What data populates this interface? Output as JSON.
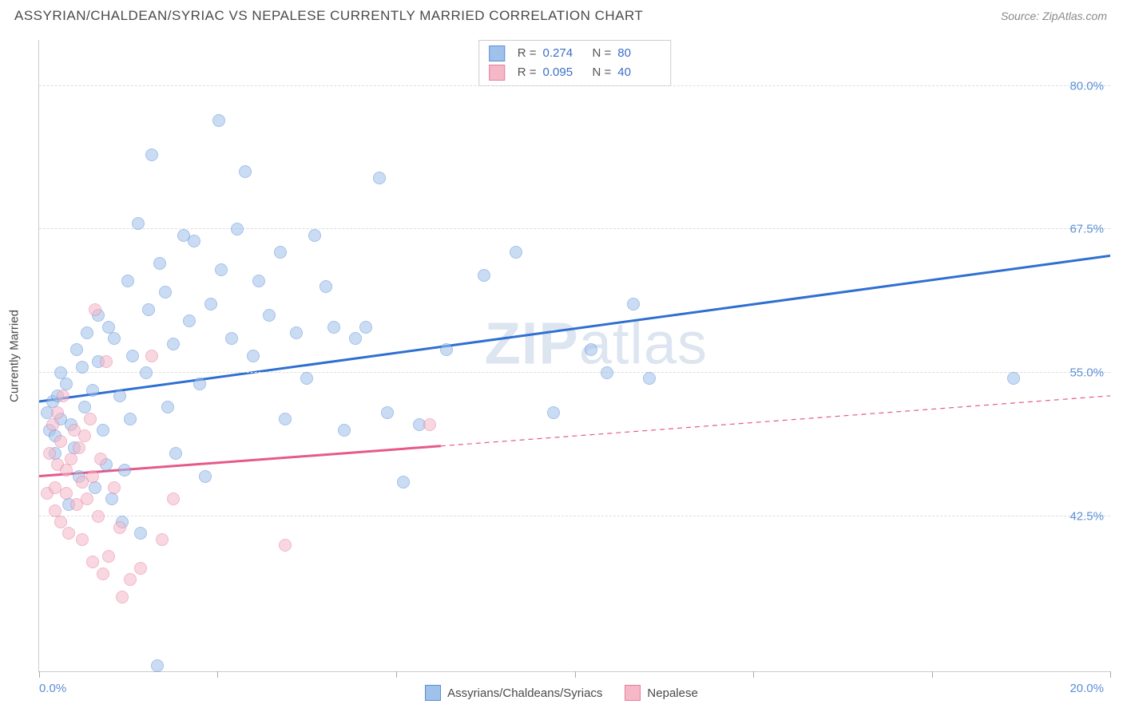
{
  "title": "ASSYRIAN/CHALDEAN/SYRIAC VS NEPALESE CURRENTLY MARRIED CORRELATION CHART",
  "source": "Source: ZipAtlas.com",
  "ylabel": "Currently Married",
  "watermark_parts": [
    "ZIP",
    "atlas"
  ],
  "chart": {
    "type": "scatter",
    "background_color": "#ffffff",
    "grid_color": "#dddddd",
    "axis_color": "#cccccc",
    "text_color": "#4a4a4a",
    "value_color": "#3b6fc9",
    "tick_label_color": "#5b8fd6",
    "xlim": [
      0.0,
      20.0
    ],
    "ylim": [
      29.0,
      84.0
    ],
    "x_ticks": [
      0.0,
      3.33,
      6.67,
      10.0,
      13.33,
      16.67,
      20.0
    ],
    "x_tick_labels": {
      "0.0": "0.0%",
      "20.0": "20.0%"
    },
    "y_grid": [
      42.5,
      55.0,
      67.5,
      80.0
    ],
    "y_tick_labels": [
      "42.5%",
      "55.0%",
      "67.5%",
      "80.0%"
    ],
    "marker_radius": 7,
    "marker_opacity": 0.55,
    "line_width": 3
  },
  "series": [
    {
      "name": "Assyrians/Chaldeans/Syriacs",
      "R": "0.274",
      "N": "80",
      "fill": "#9fc1ea",
      "stroke": "#5b8fd6",
      "line_color": "#2f6fd0",
      "trend": {
        "x1": 0.0,
        "y1": 52.5,
        "x2": 20.0,
        "y2": 65.2,
        "solid_until": 20.0
      },
      "points": [
        [
          0.15,
          51.5
        ],
        [
          0.2,
          50.0
        ],
        [
          0.25,
          52.5
        ],
        [
          0.3,
          49.5
        ],
        [
          0.3,
          48.0
        ],
        [
          0.35,
          53.0
        ],
        [
          0.4,
          55.0
        ],
        [
          0.4,
          51.0
        ],
        [
          0.5,
          54.0
        ],
        [
          0.55,
          43.5
        ],
        [
          0.6,
          50.5
        ],
        [
          0.65,
          48.5
        ],
        [
          0.7,
          57.0
        ],
        [
          0.75,
          46.0
        ],
        [
          0.8,
          55.5
        ],
        [
          0.85,
          52.0
        ],
        [
          0.9,
          58.5
        ],
        [
          1.0,
          53.5
        ],
        [
          1.05,
          45.0
        ],
        [
          1.1,
          56.0
        ],
        [
          1.1,
          60.0
        ],
        [
          1.2,
          50.0
        ],
        [
          1.25,
          47.0
        ],
        [
          1.3,
          59.0
        ],
        [
          1.35,
          44.0
        ],
        [
          1.4,
          58.0
        ],
        [
          1.5,
          53.0
        ],
        [
          1.55,
          42.0
        ],
        [
          1.6,
          46.5
        ],
        [
          1.65,
          63.0
        ],
        [
          1.7,
          51.0
        ],
        [
          1.75,
          56.5
        ],
        [
          1.85,
          68.0
        ],
        [
          1.9,
          41.0
        ],
        [
          2.0,
          55.0
        ],
        [
          2.05,
          60.5
        ],
        [
          2.1,
          74.0
        ],
        [
          2.2,
          29.5
        ],
        [
          2.25,
          64.5
        ],
        [
          2.35,
          62.0
        ],
        [
          2.4,
          52.0
        ],
        [
          2.5,
          57.5
        ],
        [
          2.55,
          48.0
        ],
        [
          2.7,
          67.0
        ],
        [
          2.8,
          59.5
        ],
        [
          2.9,
          66.5
        ],
        [
          3.0,
          54.0
        ],
        [
          3.1,
          46.0
        ],
        [
          3.2,
          61.0
        ],
        [
          3.35,
          77.0
        ],
        [
          3.4,
          64.0
        ],
        [
          3.6,
          58.0
        ],
        [
          3.7,
          67.5
        ],
        [
          3.85,
          72.5
        ],
        [
          4.0,
          56.5
        ],
        [
          4.1,
          63.0
        ],
        [
          4.3,
          60.0
        ],
        [
          4.5,
          65.5
        ],
        [
          4.6,
          51.0
        ],
        [
          4.8,
          58.5
        ],
        [
          5.0,
          54.5
        ],
        [
          5.15,
          67.0
        ],
        [
          5.35,
          62.5
        ],
        [
          5.5,
          59.0
        ],
        [
          5.7,
          50.0
        ],
        [
          5.9,
          58.0
        ],
        [
          6.1,
          59.0
        ],
        [
          6.35,
          72.0
        ],
        [
          6.5,
          51.5
        ],
        [
          6.8,
          45.5
        ],
        [
          7.1,
          50.5
        ],
        [
          7.6,
          57.0
        ],
        [
          8.3,
          63.5
        ],
        [
          8.9,
          65.5
        ],
        [
          9.6,
          51.5
        ],
        [
          10.3,
          57.0
        ],
        [
          10.6,
          55.0
        ],
        [
          11.1,
          61.0
        ],
        [
          11.4,
          54.5
        ],
        [
          18.2,
          54.5
        ]
      ]
    },
    {
      "name": "Nepalese",
      "R": "0.095",
      "N": "40",
      "fill": "#f4b8c7",
      "stroke": "#e87ea0",
      "line_color": "#e55a8a",
      "trend": {
        "x1": 0.0,
        "y1": 46.0,
        "x2": 20.0,
        "y2": 53.0,
        "solid_until": 7.5
      },
      "points": [
        [
          0.15,
          44.5
        ],
        [
          0.2,
          48.0
        ],
        [
          0.25,
          50.5
        ],
        [
          0.3,
          45.0
        ],
        [
          0.3,
          43.0
        ],
        [
          0.35,
          47.0
        ],
        [
          0.35,
          51.5
        ],
        [
          0.4,
          42.0
        ],
        [
          0.4,
          49.0
        ],
        [
          0.45,
          53.0
        ],
        [
          0.5,
          44.5
        ],
        [
          0.5,
          46.5
        ],
        [
          0.55,
          41.0
        ],
        [
          0.6,
          47.5
        ],
        [
          0.65,
          50.0
        ],
        [
          0.7,
          43.5
        ],
        [
          0.75,
          48.5
        ],
        [
          0.8,
          45.5
        ],
        [
          0.8,
          40.5
        ],
        [
          0.85,
          49.5
        ],
        [
          0.9,
          44.0
        ],
        [
          0.95,
          51.0
        ],
        [
          1.0,
          38.5
        ],
        [
          1.0,
          46.0
        ],
        [
          1.05,
          60.5
        ],
        [
          1.1,
          42.5
        ],
        [
          1.15,
          47.5
        ],
        [
          1.2,
          37.5
        ],
        [
          1.25,
          56.0
        ],
        [
          1.3,
          39.0
        ],
        [
          1.4,
          45.0
        ],
        [
          1.5,
          41.5
        ],
        [
          1.55,
          35.5
        ],
        [
          1.7,
          37.0
        ],
        [
          1.9,
          38.0
        ],
        [
          2.1,
          56.5
        ],
        [
          2.3,
          40.5
        ],
        [
          2.5,
          44.0
        ],
        [
          4.6,
          40.0
        ],
        [
          7.3,
          50.5
        ]
      ]
    }
  ],
  "legend_bottom": {
    "items": [
      {
        "label": "Assyrians/Chaldeans/Syriacs",
        "fill": "#9fc1ea",
        "stroke": "#5b8fd6"
      },
      {
        "label": "Nepalese",
        "fill": "#f4b8c7",
        "stroke": "#e87ea0"
      }
    ]
  }
}
